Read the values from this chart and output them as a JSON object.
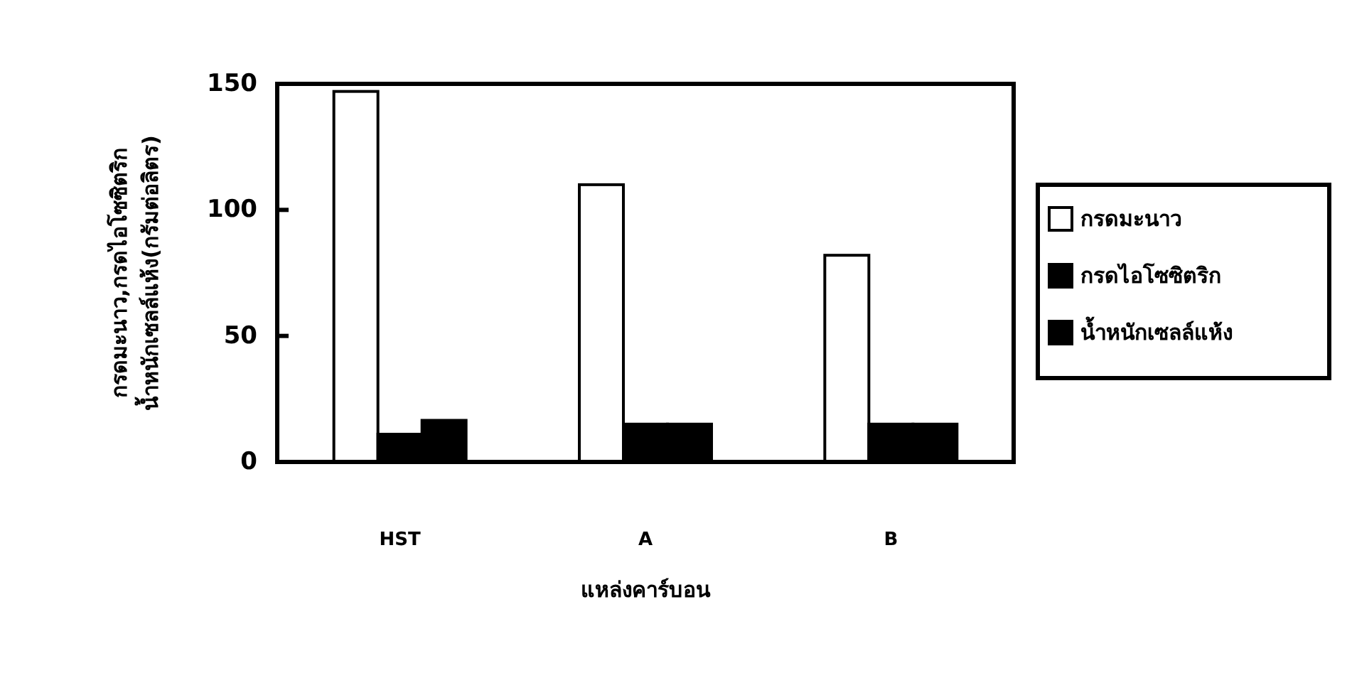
{
  "chart_data": {
    "type": "bar",
    "xlabel": "แหล่งคาร์บอน",
    "ylabel": "กรดมะนาว,กรดไอโซซิตริก\nน้ำหนักเซลล์แห้ง(กรัมต่อลิตร)",
    "categories": [
      "HST",
      "A",
      "B"
    ],
    "series": [
      {
        "name": "กรดมะนาว",
        "color": "#ffffff",
        "values": [
          147,
          110,
          82
        ]
      },
      {
        "name": "กรดไอโซซิตริก",
        "color": "#000000",
        "values": [
          11,
          15,
          15
        ]
      },
      {
        "name": "น้ำหนักเซลล์แห้ง",
        "color": "#000000",
        "values": [
          16.5,
          15,
          15
        ]
      }
    ],
    "ylim": [
      0,
      150
    ],
    "yticks": [
      0,
      50,
      100,
      150
    ],
    "grid": false,
    "legend": "right"
  }
}
